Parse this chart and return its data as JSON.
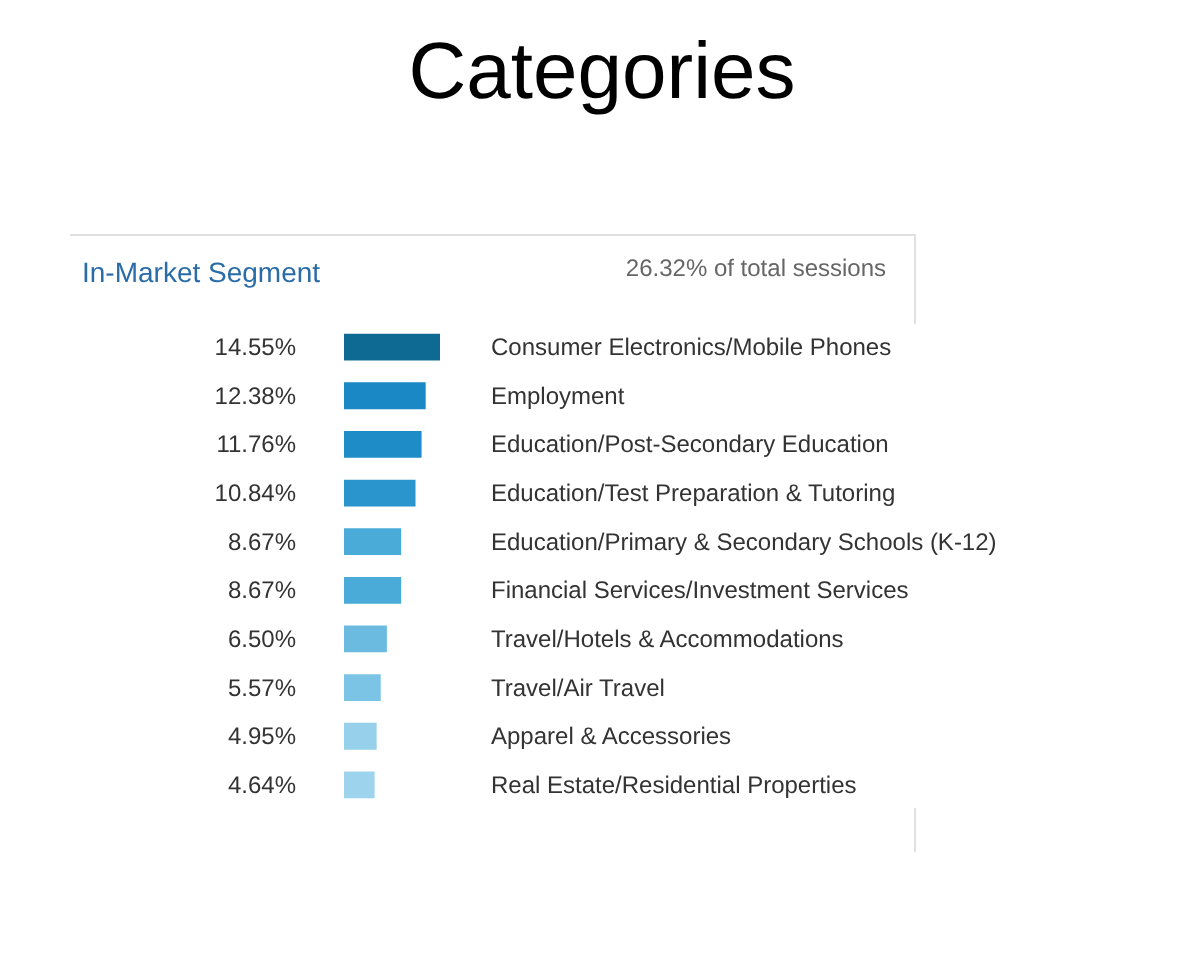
{
  "chart_data": {
    "type": "bar",
    "orientation": "horizontal",
    "title": "Categories",
    "subtitle": "In-Market Segment",
    "annotations": [
      "26.32% of total sessions"
    ],
    "categories": [
      "Consumer Electronics/Mobile Phones",
      "Employment",
      "Education/Post-Secondary Education",
      "Education/Test Preparation & Tutoring",
      "Education/Primary & Secondary Schools (K-12)",
      "Financial Services/Investment Services",
      "Travel/Hotels & Accommodations",
      "Travel/Air Travel",
      "Apparel & Accessories",
      "Real Estate/Residential Properties"
    ],
    "values": [
      14.55,
      12.38,
      11.76,
      10.84,
      8.67,
      8.67,
      6.5,
      5.57,
      4.95,
      4.64
    ],
    "value_labels": [
      "14.55%",
      "12.38%",
      "11.76%",
      "10.84%",
      "8.67%",
      "8.67%",
      "6.50%",
      "5.57%",
      "4.95%",
      "4.64%"
    ],
    "colors": [
      "#0e6a93",
      "#1a88c4",
      "#1e8cc7",
      "#2a94cc",
      "#4aabd8",
      "#4aabd8",
      "#6bbbe1",
      "#7cc4e6",
      "#96d0ea",
      "#9dd3ec"
    ],
    "grid": false
  }
}
